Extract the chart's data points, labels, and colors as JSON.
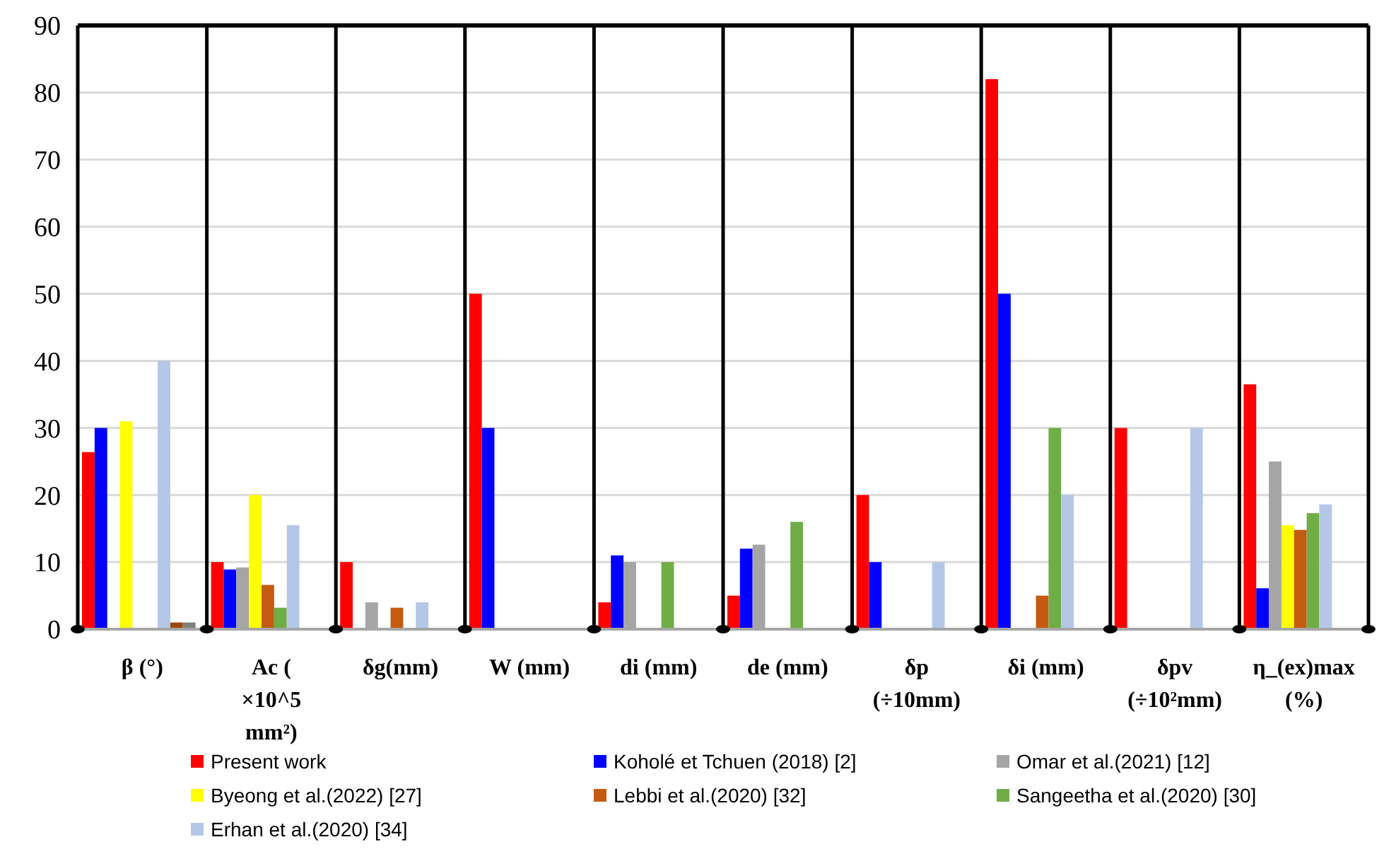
{
  "chart_data": {
    "type": "bar",
    "categories": [
      "β (°)",
      "Ac ( ×10^5 mm²)",
      "δg(mm)",
      "W (mm)",
      "di (mm)",
      "de (mm)",
      "δp (÷10mm)",
      "δi (mm)",
      "δpv (÷10²mm)",
      "η_(ex)max (%)"
    ],
    "series": [
      {
        "name": "Present work",
        "color": "#ff0000",
        "values": [
          26.4,
          10,
          10,
          50,
          4,
          5,
          20,
          82,
          30,
          36.5
        ]
      },
      {
        "name": "Koholé et Tchuen (2018) [2]",
        "color": "#0000ff",
        "values": [
          30,
          8.9,
          null,
          30,
          11,
          12,
          10,
          50,
          null,
          6.1
        ]
      },
      {
        "name": "Omar et al.(2021) [12]",
        "color": "#a5a5a5",
        "values": [
          null,
          9.2,
          4,
          null,
          10,
          12.6,
          null,
          null,
          null,
          25
        ]
      },
      {
        "name": "Byeong et al.(2022) [27]",
        "color": "#ffff00",
        "values": [
          31,
          20,
          null,
          null,
          null,
          null,
          null,
          null,
          null,
          15.5
        ]
      },
      {
        "name": "Lebbi et al.(2020) [32]",
        "color": "#c55a11",
        "values": [
          null,
          6.6,
          3.2,
          null,
          null,
          null,
          null,
          5,
          null,
          14.8
        ]
      },
      {
        "name": "Sangeetha et al.(2020) [30]",
        "color": "#70ad47",
        "values": [
          null,
          3.2,
          null,
          null,
          10,
          16,
          null,
          30,
          null,
          17.3
        ]
      },
      {
        "name": "Erhan et al.(2020) [34]",
        "color": "#b4c7e7",
        "values": [
          40,
          15.5,
          4,
          null,
          null,
          null,
          10,
          20,
          30,
          18.6
        ]
      },
      {
        "color": "#9e480e",
        "values": [
          1,
          null,
          null,
          null,
          null,
          null,
          null,
          null,
          null,
          null
        ]
      },
      {
        "color": "#7f7f7f",
        "values": [
          1,
          null,
          null,
          null,
          null,
          null,
          null,
          null,
          null,
          null
        ]
      }
    ],
    "ylim": [
      0,
      90
    ],
    "yticks": [
      0,
      10,
      20,
      30,
      40,
      50,
      60,
      70,
      80,
      90
    ],
    "grid": "y",
    "legend": "bottom"
  }
}
